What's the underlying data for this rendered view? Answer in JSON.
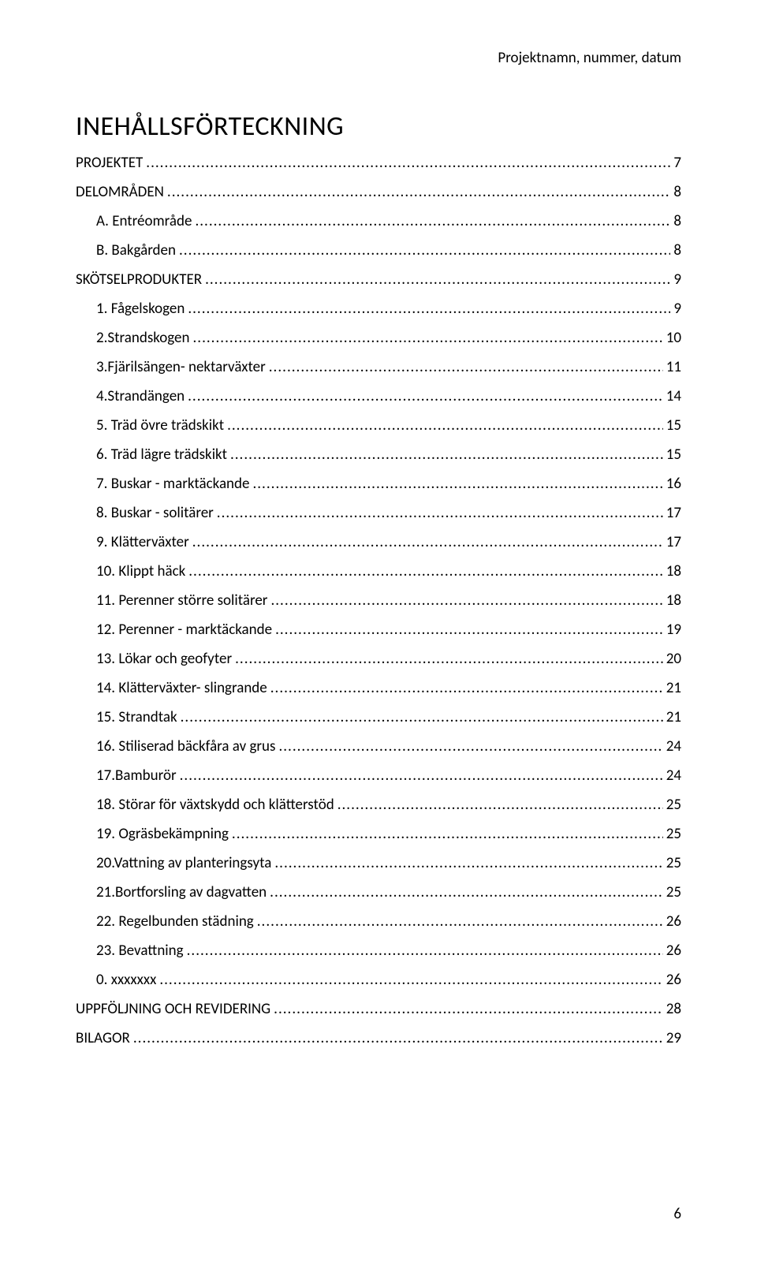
{
  "header_text": "Projektnamn, nummer, datum",
  "toc_title": "INEHÅLLSFÖRTECKNING",
  "page_number": "6",
  "entries": [
    {
      "level": 1,
      "label": "PROJEKTET",
      "page": "7"
    },
    {
      "level": 1,
      "label": "DELOMRÅDEN",
      "page": "8"
    },
    {
      "level": 2,
      "label": "A. Entréområde",
      "page": "8"
    },
    {
      "level": 2,
      "label": "B. Bakgården",
      "page": "8"
    },
    {
      "level": 1,
      "label": "SKÖTSELPRODUKTER",
      "page": "9"
    },
    {
      "level": 2,
      "label": "1. Fågelskogen",
      "page": "9"
    },
    {
      "level": 2,
      "label": "2.Strandskogen",
      "page": "10"
    },
    {
      "level": 2,
      "label": "3.Fjärilsängen- nektarväxter",
      "page": "11"
    },
    {
      "level": 2,
      "label": "4.Strandängen",
      "page": "14"
    },
    {
      "level": 2,
      "label": "5. Träd övre trädskikt",
      "page": "15"
    },
    {
      "level": 2,
      "label": "6. Träd lägre trädskikt",
      "page": "15"
    },
    {
      "level": 2,
      "label": "7. Buskar - marktäckande",
      "page": "16"
    },
    {
      "level": 2,
      "label": "8. Buskar - solitärer",
      "page": "17"
    },
    {
      "level": 2,
      "label": "9. Klätterväxter",
      "page": "17"
    },
    {
      "level": 2,
      "label": "10. Klippt häck",
      "page": "18"
    },
    {
      "level": 2,
      "label": "11. Perenner större solitärer",
      "page": "18"
    },
    {
      "level": 2,
      "label": "12. Perenner - marktäckande",
      "page": "19"
    },
    {
      "level": 2,
      "label": "13. Lökar och geofyter",
      "page": "20"
    },
    {
      "level": 2,
      "label": "14. Klätterväxter- slingrande",
      "page": "21"
    },
    {
      "level": 2,
      "label": "15. Strandtak",
      "page": "21"
    },
    {
      "level": 2,
      "label": "16. Stiliserad bäckfåra av grus",
      "page": "24"
    },
    {
      "level": 2,
      "label": "17.Bamburör",
      "page": "24"
    },
    {
      "level": 2,
      "label": "18. Störar för växtskydd och klätterstöd",
      "page": "25"
    },
    {
      "level": 2,
      "label": "19. Ogräsbekämpning",
      "page": "25"
    },
    {
      "level": 2,
      "label": "20.Vattning av planteringsyta",
      "page": "25"
    },
    {
      "level": 2,
      "label": "21.Bortforsling av dagvatten",
      "page": "25"
    },
    {
      "level": 2,
      "label": "22. Regelbunden städning",
      "page": "26"
    },
    {
      "level": 2,
      "label": "23. Bevattning",
      "page": "26"
    },
    {
      "level": 2,
      "label": "0. xxxxxxx",
      "page": "26"
    },
    {
      "level": 1,
      "label": "UPPFÖLJNING OCH REVIDERING",
      "page": "28"
    },
    {
      "level": 1,
      "label": "BILAGOR",
      "page": "29"
    }
  ]
}
